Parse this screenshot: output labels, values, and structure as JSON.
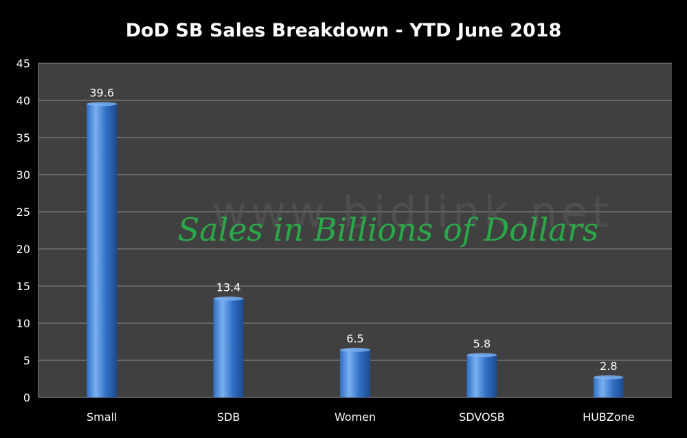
{
  "chart_data": {
    "type": "bar",
    "title": "DoD SB Sales Breakdown - YTD June 2018",
    "categories": [
      "Small",
      "SDB",
      "Women",
      "SDVOSB",
      "HUBZone"
    ],
    "values": [
      39.6,
      13.4,
      6.5,
      5.8,
      2.8
    ],
    "data_labels": [
      "39.6",
      "13.4",
      "6.5",
      "5.8",
      "2.8"
    ],
    "ylim": [
      0,
      45
    ],
    "yticks": [
      0,
      5,
      10,
      15,
      20,
      25,
      30,
      35,
      40,
      45
    ],
    "annotation": "Sales in Billions of Dollars",
    "watermark": "www.bidlink.net",
    "grid": true,
    "colors": {
      "background": "#000000",
      "plot_area": "#404040",
      "gridline": "#8c8c8c",
      "bar": "#2f6ec4",
      "bar_highlight": "#7ab0f0",
      "text": "#ffffff",
      "annotation": "#2aa84a",
      "watermark": "#5a5a5a"
    }
  }
}
